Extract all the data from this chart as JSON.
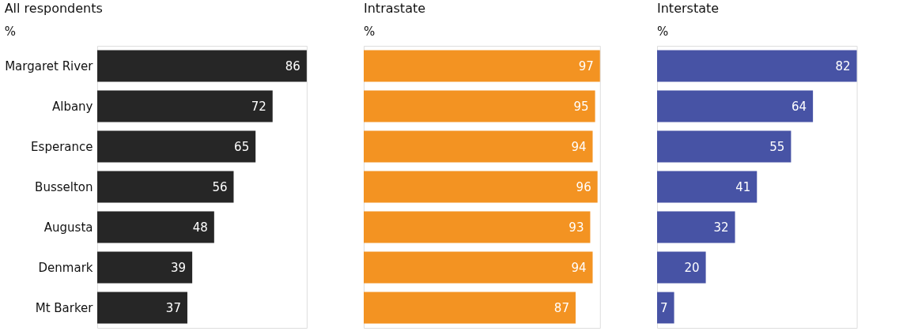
{
  "chart_data": [
    {
      "type": "bar",
      "orientation": "horizontal",
      "title": "All respondents",
      "subtitle": "%",
      "categories": [
        "Margaret River",
        "Albany",
        "Esperance",
        "Busselton",
        "Augusta",
        "Denmark",
        "Mt Barker"
      ],
      "values": [
        86,
        72,
        65,
        56,
        48,
        39,
        37
      ],
      "color": "#262626",
      "data_labels": true,
      "tick_labels": "y"
    },
    {
      "type": "bar",
      "orientation": "horizontal",
      "title": "Intrastate",
      "subtitle": "%",
      "categories": [
        null,
        null,
        null,
        null,
        null,
        null,
        null
      ],
      "values": [
        97,
        95,
        94,
        96,
        93,
        94,
        87
      ],
      "color": "#f39322",
      "data_labels": true,
      "tick_labels": false
    },
    {
      "type": "bar",
      "orientation": "horizontal",
      "title": "Interstate",
      "subtitle": "%",
      "categories": [
        null,
        null,
        null,
        null,
        null,
        null,
        null
      ],
      "values": [
        82,
        64,
        55,
        41,
        32,
        20,
        7
      ],
      "color": "#4753a5",
      "data_labels": true,
      "tick_labels": false
    }
  ]
}
